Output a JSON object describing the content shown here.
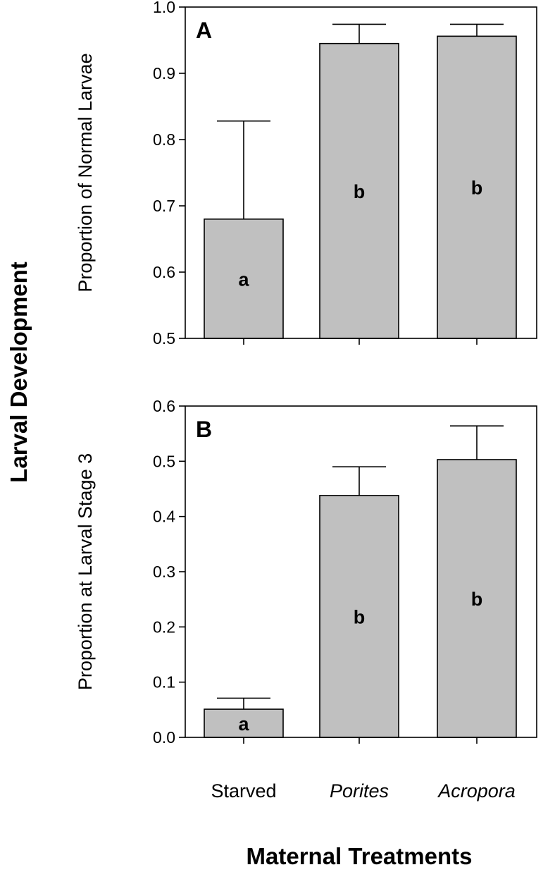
{
  "figure": {
    "shared_ylabel": "Larval Development",
    "xlabel": "Maternal Treatments",
    "categories": [
      "Starved",
      "Porites",
      "Acropora"
    ],
    "category_italic": [
      false,
      true,
      true
    ],
    "bar_color": "#c0c0c0"
  },
  "chart_data": [
    {
      "type": "bar",
      "panel": "A",
      "ylabel": "Proportion of Normal Larvae",
      "ylim": [
        0.5,
        1.0
      ],
      "yticks": [
        "0.5",
        "0.6",
        "0.7",
        "0.8",
        "0.9",
        "1.0"
      ],
      "categories": [
        "Starved",
        "Porites",
        "Acropora"
      ],
      "values": [
        0.68,
        0.945,
        0.956
      ],
      "error_upper": [
        0.828,
        0.974,
        0.974
      ],
      "significance": [
        "a",
        "b",
        "b"
      ]
    },
    {
      "type": "bar",
      "panel": "B",
      "ylabel": "Proportion at Larval Stage 3",
      "ylim": [
        0.0,
        0.6
      ],
      "yticks": [
        "0.0",
        "0.1",
        "0.2",
        "0.3",
        "0.4",
        "0.5",
        "0.6"
      ],
      "categories": [
        "Starved",
        "Porites",
        "Acropora"
      ],
      "values": [
        0.051,
        0.438,
        0.503
      ],
      "error_upper": [
        0.071,
        0.49,
        0.564
      ],
      "significance": [
        "a",
        "b",
        "b"
      ]
    }
  ]
}
